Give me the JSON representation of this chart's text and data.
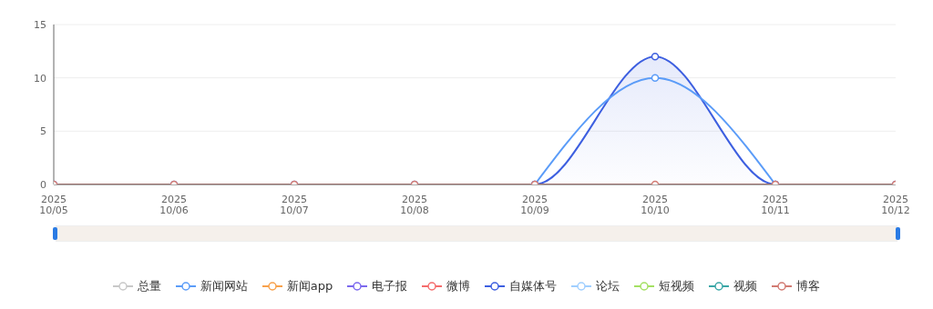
{
  "chart_data": {
    "type": "line",
    "categories": [
      "2025\n10/05",
      "2025\n10/06",
      "2025\n10/07",
      "2025\n10/08",
      "2025\n10/09",
      "2025\n10/10",
      "2025\n10/11",
      "2025\n10/12"
    ],
    "series": [
      {
        "name": "总量",
        "color": "#c8c8c8",
        "values": [
          null,
          null,
          null,
          null,
          null,
          null,
          null,
          null
        ]
      },
      {
        "name": "新闻网站",
        "color": "#5b9cf8",
        "values": [
          null,
          null,
          null,
          null,
          0,
          10,
          0,
          null
        ]
      },
      {
        "name": "新闻app",
        "color": "#f8a14b",
        "values": [
          null,
          null,
          null,
          null,
          null,
          null,
          null,
          null
        ]
      },
      {
        "name": "电子报",
        "color": "#7b68ee",
        "values": [
          null,
          null,
          null,
          null,
          null,
          null,
          null,
          null
        ]
      },
      {
        "name": "微博",
        "color": "#f56c6c",
        "values": [
          null,
          null,
          null,
          null,
          null,
          null,
          null,
          null
        ]
      },
      {
        "name": "自媒体号",
        "type": "area",
        "color": "#3d5fe0",
        "values": [
          0,
          0,
          0,
          0,
          0,
          12,
          0,
          0
        ]
      },
      {
        "name": "论坛",
        "color": "#a0cfff",
        "values": [
          null,
          null,
          null,
          null,
          null,
          null,
          null,
          null
        ]
      },
      {
        "name": "短视频",
        "color": "#a4e063",
        "values": [
          null,
          null,
          null,
          null,
          null,
          null,
          null,
          null
        ]
      },
      {
        "name": "视频",
        "color": "#3aa6a6",
        "values": [
          null,
          null,
          null,
          null,
          null,
          null,
          null,
          null
        ]
      },
      {
        "name": "博客",
        "color": "#d27a72",
        "values": [
          0,
          0,
          0,
          0,
          0,
          0,
          0,
          0
        ]
      }
    ],
    "ylim": [
      0,
      15
    ],
    "yticks": [
      0,
      5,
      10,
      15
    ],
    "grid": "y",
    "legend": "bottom",
    "marker": "circle",
    "line_style": "solid"
  }
}
